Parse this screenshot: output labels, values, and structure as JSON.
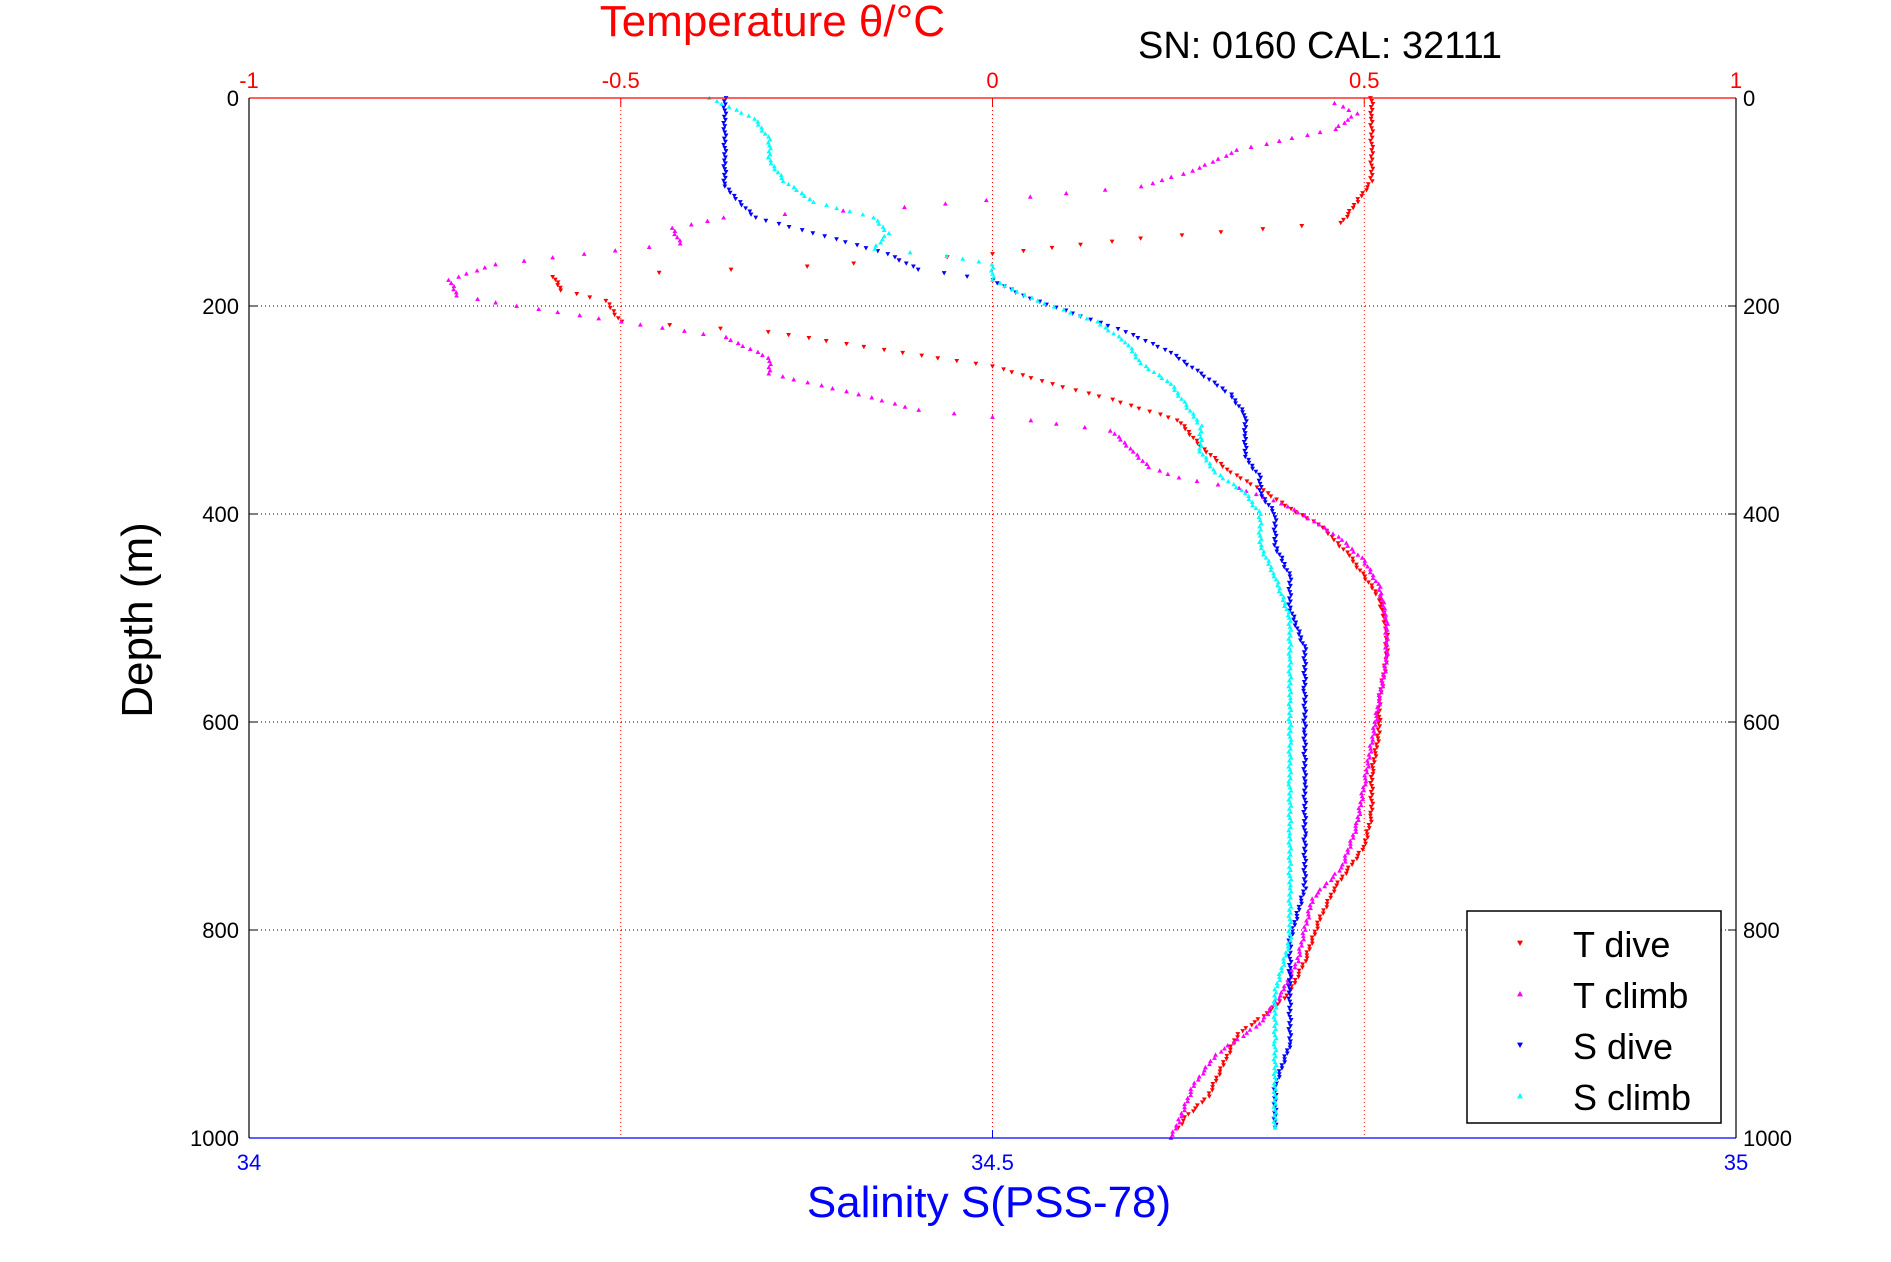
{
  "header": {
    "title": "Temperature θ/°C",
    "serial_label": "SN: 0160  CAL: 32111"
  },
  "colors": {
    "temperature_axis": "#ff0000",
    "salinity_axis": "#0000ff",
    "t_dive": "#ff0000",
    "t_climb": "#ff00ff",
    "s_dive": "#0000ff",
    "s_climb": "#00ffff",
    "grid": "#000000"
  },
  "chart_data": {
    "type": "scatter",
    "title": "Temperature θ/°C",
    "xlabel": "Salinity S(PSS-78)",
    "ylabel": "Depth (m)",
    "x_top_label": "Temperature θ/°C",
    "x_top_range": [
      -1,
      1
    ],
    "x_top_ticks": [
      "-1",
      "-0.5",
      "0",
      "0.5",
      "1"
    ],
    "x_bottom_range": [
      34,
      35
    ],
    "x_bottom_ticks": [
      "34",
      "34.5",
      "35"
    ],
    "y_range": [
      0,
      1000
    ],
    "y_reversed": true,
    "y_ticks": [
      "0",
      "200",
      "400",
      "600",
      "800",
      "1000"
    ],
    "grid": true,
    "legend_position": "bottom-right",
    "series": [
      {
        "name": "T dive",
        "axis": "temperature",
        "marker": "triangle-down",
        "points": [
          [
            0.51,
            0
          ],
          [
            0.51,
            20
          ],
          [
            0.51,
            50
          ],
          [
            0.51,
            80
          ],
          [
            0.49,
            100
          ],
          [
            0.47,
            120
          ],
          [
            0.2,
            135
          ],
          [
            0.0,
            150
          ],
          [
            -0.25,
            162
          ],
          [
            -0.45,
            168
          ],
          [
            -0.59,
            172
          ],
          [
            -0.58,
            185
          ],
          [
            -0.52,
            195
          ],
          [
            -0.51,
            205
          ],
          [
            -0.5,
            215
          ],
          [
            -0.3,
            225
          ],
          [
            -0.12,
            245
          ],
          [
            0.0,
            258
          ],
          [
            0.08,
            275
          ],
          [
            0.16,
            290
          ],
          [
            0.25,
            310
          ],
          [
            0.28,
            335
          ],
          [
            0.32,
            360
          ],
          [
            0.37,
            380
          ],
          [
            0.4,
            395
          ],
          [
            0.44,
            410
          ],
          [
            0.46,
            425
          ],
          [
            0.48,
            440
          ],
          [
            0.5,
            460
          ],
          [
            0.52,
            480
          ],
          [
            0.53,
            510
          ],
          [
            0.53,
            540
          ],
          [
            0.52,
            580
          ],
          [
            0.52,
            610
          ],
          [
            0.51,
            650
          ],
          [
            0.51,
            690
          ],
          [
            0.5,
            720
          ],
          [
            0.46,
            760
          ],
          [
            0.44,
            790
          ],
          [
            0.42,
            830
          ],
          [
            0.4,
            860
          ],
          [
            0.37,
            880
          ],
          [
            0.33,
            900
          ],
          [
            0.31,
            930
          ],
          [
            0.29,
            960
          ],
          [
            0.26,
            980
          ],
          [
            0.25,
            990
          ]
        ]
      },
      {
        "name": "T climb",
        "axis": "temperature",
        "marker": "triangle-up",
        "points": [
          [
            0.46,
            5
          ],
          [
            0.49,
            15
          ],
          [
            0.46,
            30
          ],
          [
            0.33,
            50
          ],
          [
            0.27,
            70
          ],
          [
            0.2,
            85
          ],
          [
            0.05,
            95
          ],
          [
            -0.12,
            105
          ],
          [
            -0.36,
            115
          ],
          [
            -0.43,
            125
          ],
          [
            -0.42,
            140
          ],
          [
            -0.55,
            150
          ],
          [
            -0.67,
            160
          ],
          [
            -0.73,
            175
          ],
          [
            -0.72,
            190
          ],
          [
            -0.64,
            200
          ],
          [
            -0.5,
            215
          ],
          [
            -0.36,
            230
          ],
          [
            -0.3,
            250
          ],
          [
            -0.3,
            265
          ],
          [
            -0.18,
            285
          ],
          [
            -0.1,
            300
          ],
          [
            0.05,
            310
          ],
          [
            0.16,
            320
          ],
          [
            0.19,
            340
          ],
          [
            0.21,
            355
          ],
          [
            0.25,
            365
          ],
          [
            0.33,
            375
          ],
          [
            0.39,
            390
          ],
          [
            0.44,
            410
          ],
          [
            0.47,
            425
          ],
          [
            0.5,
            445
          ],
          [
            0.52,
            470
          ],
          [
            0.53,
            500
          ],
          [
            0.53,
            540
          ],
          [
            0.52,
            580
          ],
          [
            0.51,
            620
          ],
          [
            0.5,
            660
          ],
          [
            0.49,
            700
          ],
          [
            0.47,
            740
          ],
          [
            0.43,
            770
          ],
          [
            0.42,
            800
          ],
          [
            0.41,
            830
          ],
          [
            0.39,
            860
          ],
          [
            0.36,
            890
          ],
          [
            0.3,
            920
          ],
          [
            0.27,
            950
          ],
          [
            0.25,
            985
          ],
          [
            0.24,
            1000
          ]
        ]
      },
      {
        "name": "S dive",
        "axis": "salinity",
        "marker": "triangle-down",
        "points": [
          [
            34.32,
            0
          ],
          [
            34.32,
            30
          ],
          [
            34.32,
            60
          ],
          [
            34.32,
            85
          ],
          [
            34.33,
            100
          ],
          [
            34.34,
            115
          ],
          [
            34.38,
            130
          ],
          [
            34.43,
            150
          ],
          [
            34.45,
            165
          ],
          [
            34.5,
            175
          ],
          [
            34.52,
            190
          ],
          [
            34.56,
            210
          ],
          [
            34.59,
            225
          ],
          [
            34.62,
            245
          ],
          [
            34.64,
            265
          ],
          [
            34.66,
            285
          ],
          [
            34.67,
            305
          ],
          [
            34.67,
            325
          ],
          [
            34.67,
            345
          ],
          [
            34.68,
            365
          ],
          [
            34.68,
            380
          ],
          [
            34.69,
            400
          ],
          [
            34.69,
            430
          ],
          [
            34.7,
            460
          ],
          [
            34.7,
            490
          ],
          [
            34.71,
            530
          ],
          [
            34.71,
            570
          ],
          [
            34.71,
            610
          ],
          [
            34.71,
            660
          ],
          [
            34.71,
            710
          ],
          [
            34.71,
            760
          ],
          [
            34.7,
            810
          ],
          [
            34.7,
            860
          ],
          [
            34.7,
            910
          ],
          [
            34.69,
            950
          ],
          [
            34.69,
            990
          ]
        ]
      },
      {
        "name": "S climb",
        "axis": "salinity",
        "marker": "triangle-up",
        "points": [
          [
            34.31,
            0
          ],
          [
            34.34,
            20
          ],
          [
            34.35,
            40
          ],
          [
            34.35,
            60
          ],
          [
            34.36,
            80
          ],
          [
            34.38,
            100
          ],
          [
            34.42,
            115
          ],
          [
            34.43,
            130
          ],
          [
            34.42,
            145
          ],
          [
            34.47,
            152
          ],
          [
            34.5,
            160
          ],
          [
            34.5,
            175
          ],
          [
            34.53,
            195
          ],
          [
            34.57,
            215
          ],
          [
            34.59,
            235
          ],
          [
            34.6,
            255
          ],
          [
            34.62,
            275
          ],
          [
            34.63,
            295
          ],
          [
            34.64,
            315
          ],
          [
            34.64,
            340
          ],
          [
            34.65,
            360
          ],
          [
            34.67,
            380
          ],
          [
            34.68,
            400
          ],
          [
            34.68,
            430
          ],
          [
            34.69,
            460
          ],
          [
            34.7,
            500
          ],
          [
            34.7,
            540
          ],
          [
            34.7,
            580
          ],
          [
            34.7,
            620
          ],
          [
            34.7,
            660
          ],
          [
            34.7,
            710
          ],
          [
            34.7,
            760
          ],
          [
            34.7,
            810
          ],
          [
            34.69,
            860
          ],
          [
            34.69,
            910
          ],
          [
            34.69,
            950
          ],
          [
            34.69,
            990
          ]
        ]
      }
    ]
  }
}
